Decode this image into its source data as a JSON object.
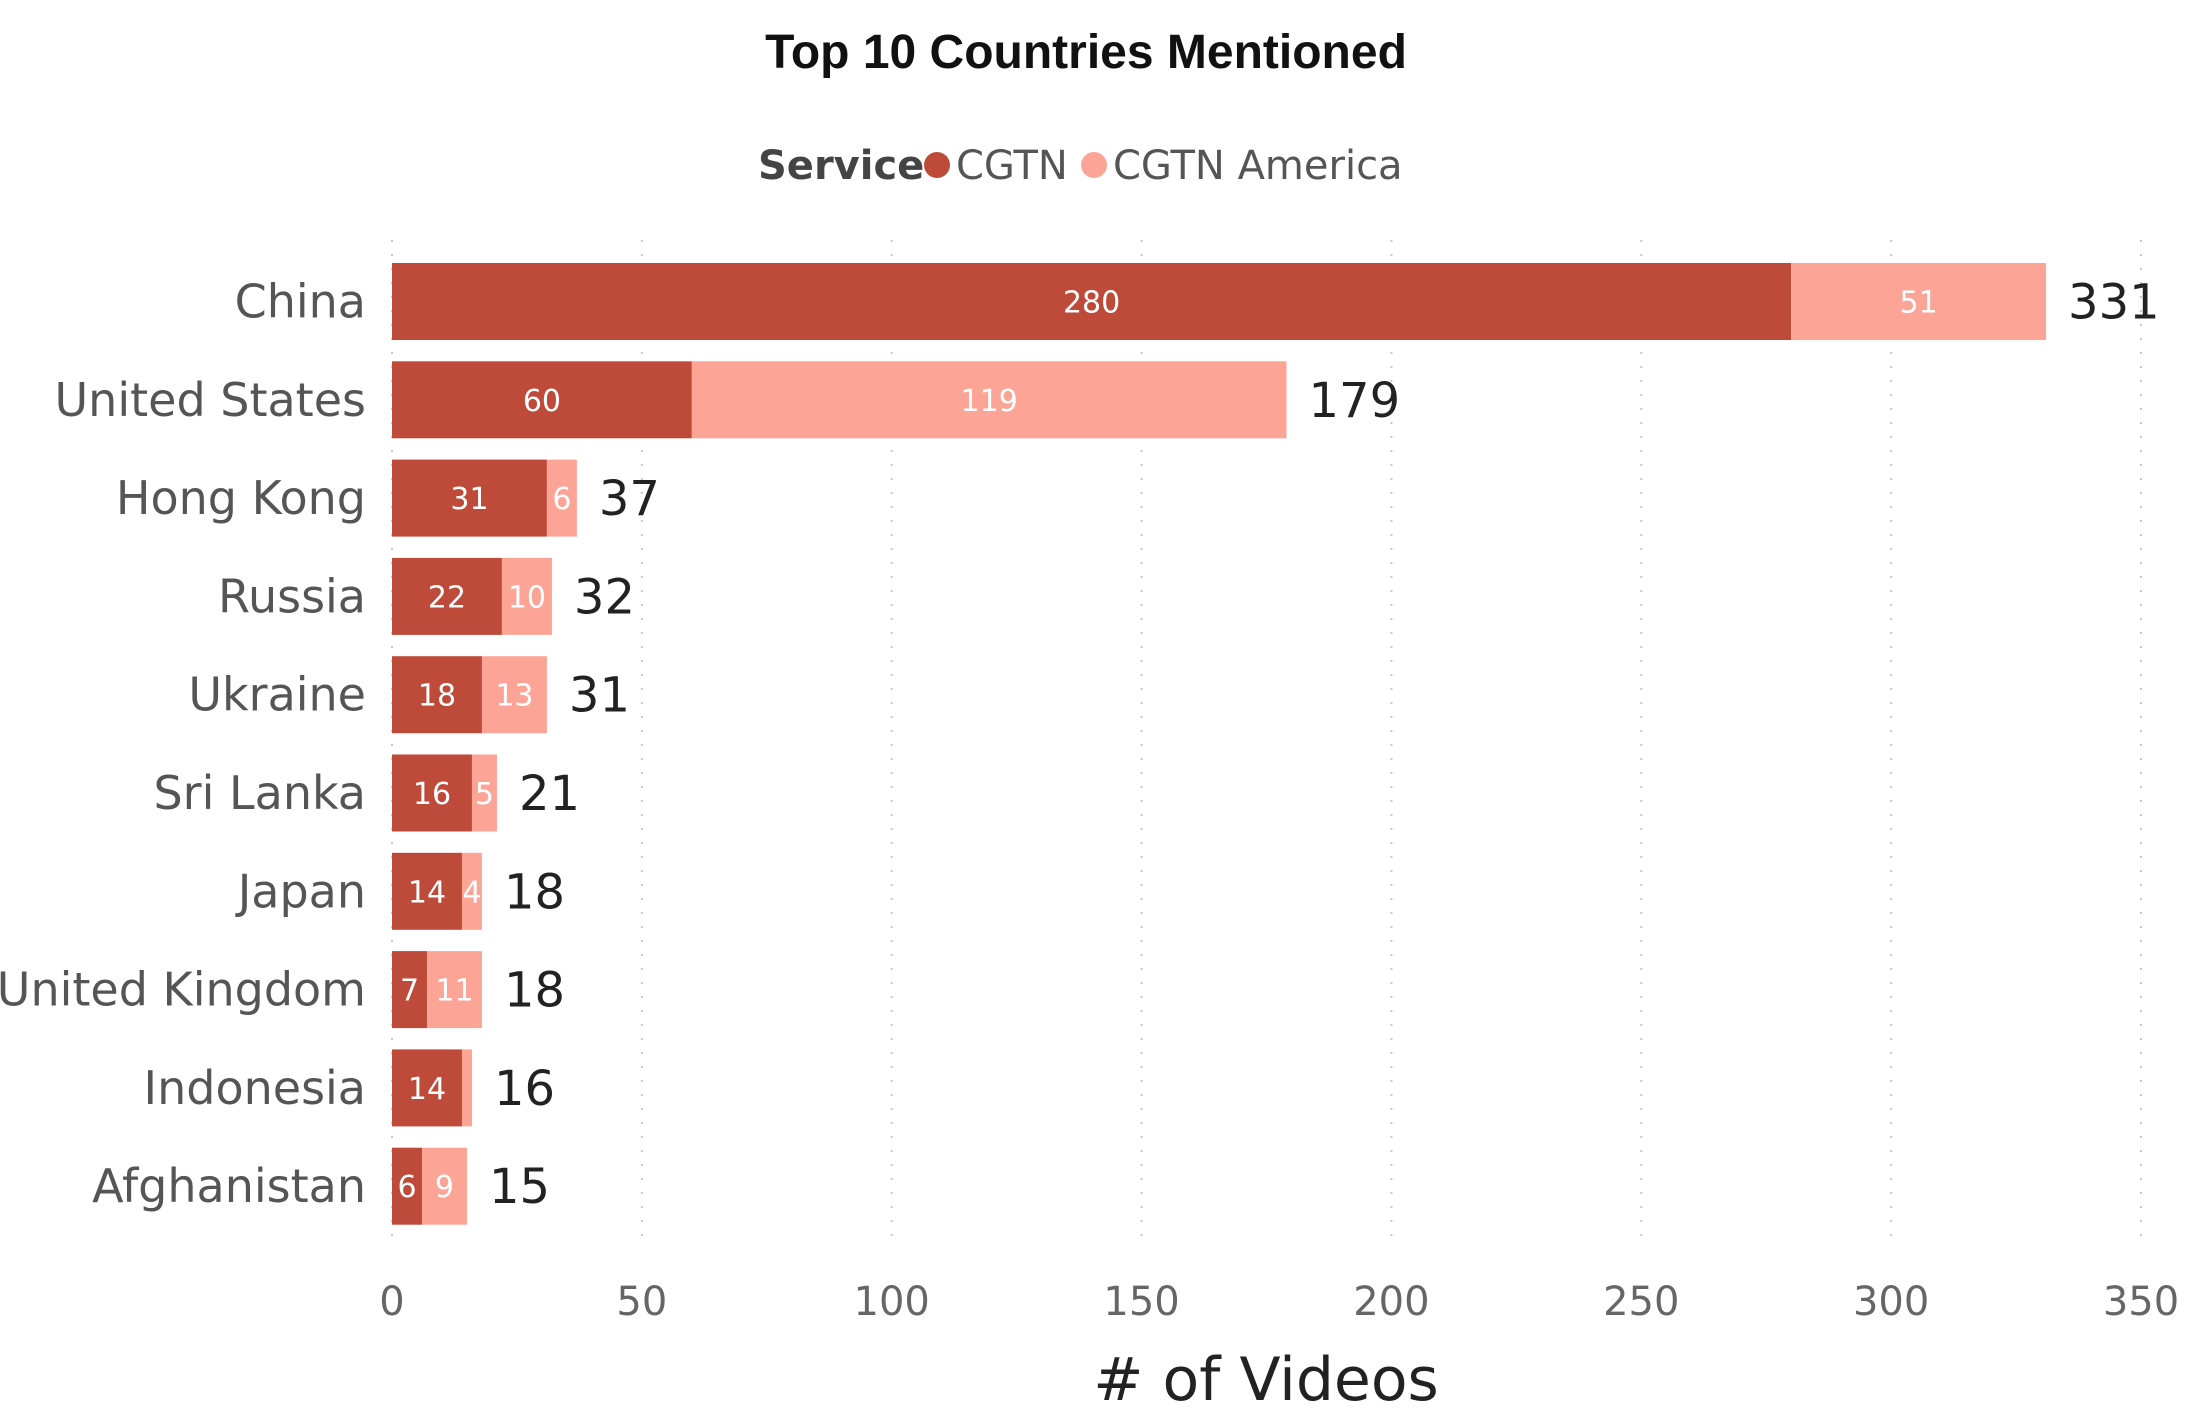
{
  "chart_data": {
    "type": "bar",
    "orientation": "horizontal",
    "stacked": true,
    "title": "Top 10 Countries Mentioned",
    "xlabel": "# of Videos",
    "ylabel": "",
    "xlim": [
      0,
      350
    ],
    "xticks": [
      0,
      50,
      100,
      150,
      200,
      250,
      300,
      350
    ],
    "grid": "vertical-dotted",
    "legend": {
      "title": "Service",
      "position": "top-center"
    },
    "categories": [
      "China",
      "United States",
      "Hong Kong",
      "Russia",
      "Ukraine",
      "Sri Lanka",
      "Japan",
      "United Kingdom",
      "Indonesia",
      "Afghanistan"
    ],
    "series": [
      {
        "name": "CGTN",
        "color": "#be4a39",
        "values": [
          280,
          60,
          31,
          22,
          18,
          16,
          14,
          7,
          14,
          6
        ]
      },
      {
        "name": "CGTN America",
        "color": "#fca597",
        "values": [
          51,
          119,
          6,
          10,
          13,
          5,
          4,
          11,
          2,
          9
        ]
      }
    ],
    "segment_labels": [
      [
        "280",
        "60",
        "31",
        "22",
        "18",
        "16",
        "14",
        "7",
        "14",
        "6"
      ],
      [
        "51",
        "119",
        "6",
        "10",
        "13",
        "5",
        "4",
        "11",
        "",
        "9"
      ]
    ],
    "totals": [
      331,
      179,
      37,
      32,
      31,
      21,
      18,
      18,
      16,
      15
    ]
  }
}
